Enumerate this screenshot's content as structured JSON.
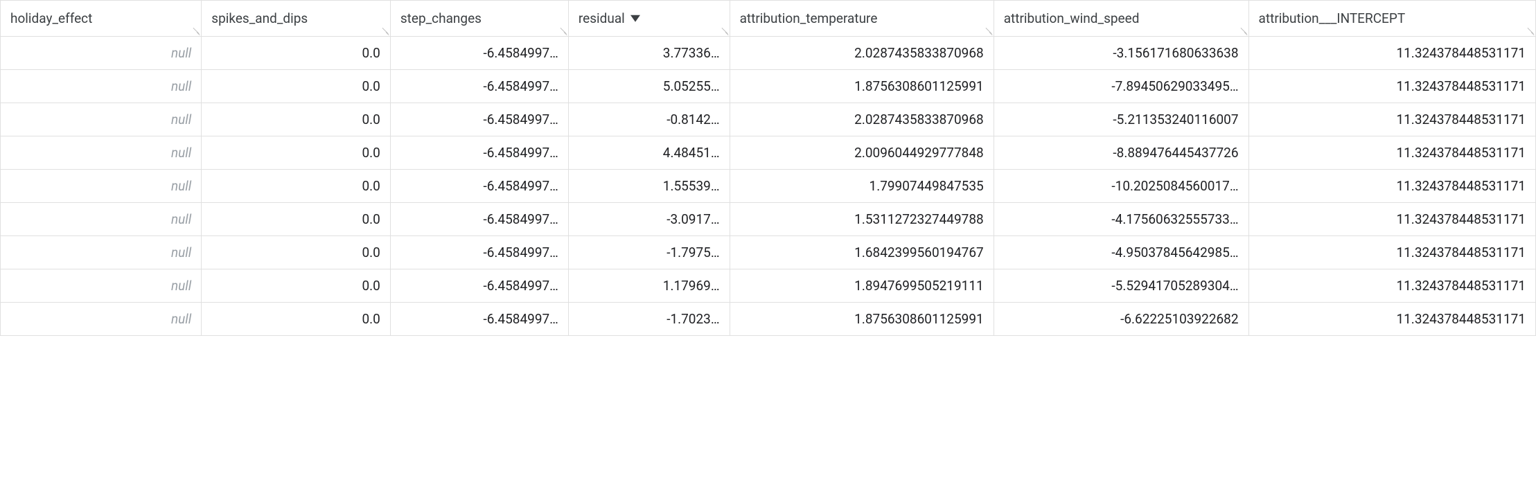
{
  "table": {
    "null_display": "null",
    "sorted_column_index": 3,
    "sort_direction": "desc",
    "columns": [
      {
        "key": "holiday_effect",
        "label": "holiday_effect",
        "sortable": true,
        "class": "col-holiday"
      },
      {
        "key": "spikes_and_dips",
        "label": "spikes_and_dips",
        "sortable": true,
        "class": "col-spikes"
      },
      {
        "key": "step_changes",
        "label": "step_changes",
        "sortable": true,
        "class": "col-step"
      },
      {
        "key": "residual",
        "label": "residual",
        "sortable": true,
        "class": "col-resid"
      },
      {
        "key": "attribution_temperature",
        "label": "attribution_temperature",
        "sortable": true,
        "class": "col-temp"
      },
      {
        "key": "attribution_wind_speed",
        "label": "attribution_wind_speed",
        "sortable": true,
        "class": "col-wind"
      },
      {
        "key": "attribution___INTERCEPT",
        "label": "attribution___INTERCEPT",
        "sortable": true,
        "class": "col-intercept"
      }
    ],
    "rows": [
      {
        "holiday_effect": null,
        "spikes_and_dips": "0.0",
        "step_changes": "-6.4584997…",
        "residual": "3.77336…",
        "attribution_temperature": "2.0287435833870968",
        "attribution_wind_speed": "-3.156171680633638",
        "attribution___INTERCEPT": "11.324378448531171"
      },
      {
        "holiday_effect": null,
        "spikes_and_dips": "0.0",
        "step_changes": "-6.4584997…",
        "residual": "5.05255…",
        "attribution_temperature": "1.8756308601125991",
        "attribution_wind_speed": "-7.89450629033495…",
        "attribution___INTERCEPT": "11.324378448531171"
      },
      {
        "holiday_effect": null,
        "spikes_and_dips": "0.0",
        "step_changes": "-6.4584997…",
        "residual": "-0.8142…",
        "attribution_temperature": "2.0287435833870968",
        "attribution_wind_speed": "-5.211353240116007",
        "attribution___INTERCEPT": "11.324378448531171"
      },
      {
        "holiday_effect": null,
        "spikes_and_dips": "0.0",
        "step_changes": "-6.4584997…",
        "residual": "4.48451…",
        "attribution_temperature": "2.0096044929777848",
        "attribution_wind_speed": "-8.889476445437726",
        "attribution___INTERCEPT": "11.324378448531171"
      },
      {
        "holiday_effect": null,
        "spikes_and_dips": "0.0",
        "step_changes": "-6.4584997…",
        "residual": "1.55539…",
        "attribution_temperature": "1.79907449847535",
        "attribution_wind_speed": "-10.2025084560017…",
        "attribution___INTERCEPT": "11.324378448531171"
      },
      {
        "holiday_effect": null,
        "spikes_and_dips": "0.0",
        "step_changes": "-6.4584997…",
        "residual": "-3.0917…",
        "attribution_temperature": "1.5311272327449788",
        "attribution_wind_speed": "-4.17560632555733…",
        "attribution___INTERCEPT": "11.324378448531171"
      },
      {
        "holiday_effect": null,
        "spikes_and_dips": "0.0",
        "step_changes": "-6.4584997…",
        "residual": "-1.7975…",
        "attribution_temperature": "1.6842399560194767",
        "attribution_wind_speed": "-4.95037845642985…",
        "attribution___INTERCEPT": "11.324378448531171"
      },
      {
        "holiday_effect": null,
        "spikes_and_dips": "0.0",
        "step_changes": "-6.4584997…",
        "residual": "1.17969…",
        "attribution_temperature": "1.8947699505219111",
        "attribution_wind_speed": "-5.52941705289304…",
        "attribution___INTERCEPT": "11.324378448531171"
      },
      {
        "holiday_effect": null,
        "spikes_and_dips": "0.0",
        "step_changes": "-6.4584997…",
        "residual": "-1.7023…",
        "attribution_temperature": "1.8756308601125991",
        "attribution_wind_speed": "-6.62225103922682",
        "attribution___INTERCEPT": "11.324378448531171"
      }
    ]
  }
}
